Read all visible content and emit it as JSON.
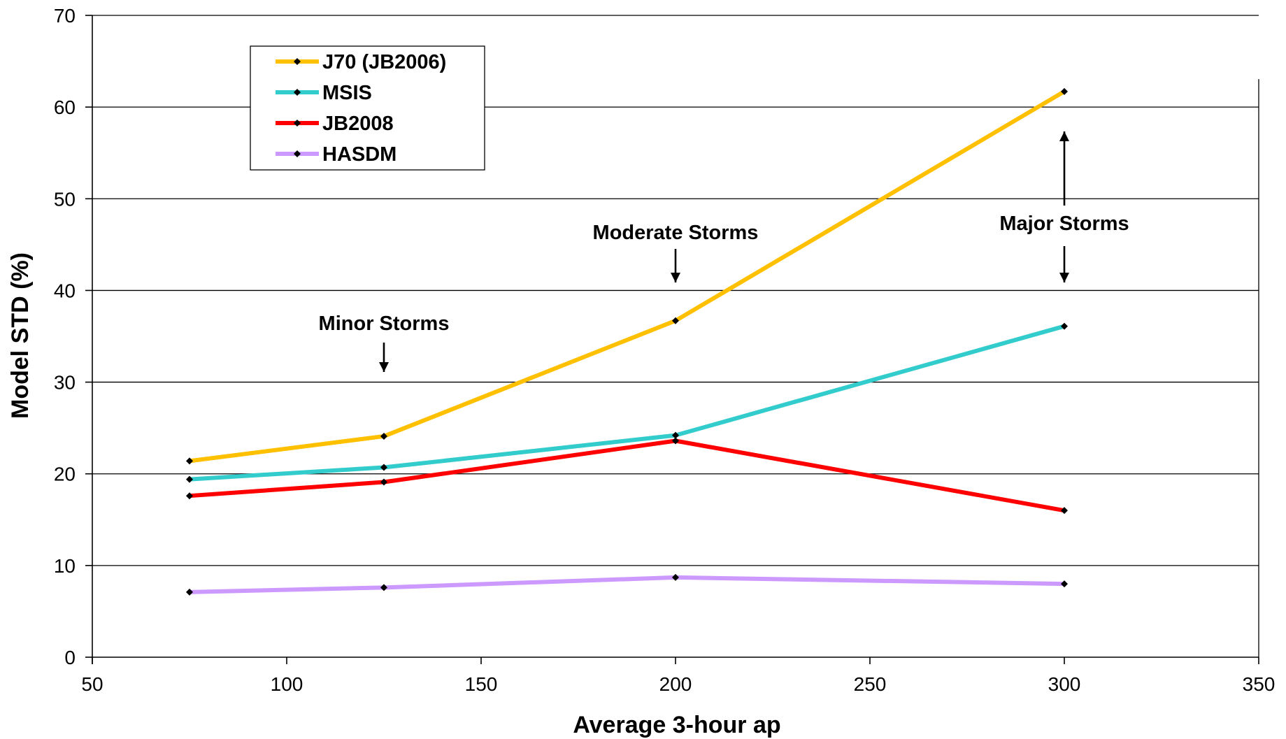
{
  "chart_data": {
    "type": "line",
    "title": "",
    "xlabel": "Average 3-hour ap",
    "ylabel": "Model STD (%)",
    "xlim": [
      50,
      350
    ],
    "ylim": [
      0,
      70
    ],
    "x_ticks": [
      50,
      100,
      150,
      200,
      250,
      300,
      350
    ],
    "y_ticks": [
      0,
      10,
      20,
      30,
      40,
      50,
      60,
      70
    ],
    "grid": "horizontal",
    "legend_position": "top-left",
    "x": [
      75,
      125,
      200,
      300
    ],
    "series": [
      {
        "name": "J70 (JB2006)",
        "color": "#FFC000",
        "values": [
          21.4,
          24.1,
          36.7,
          61.7
        ]
      },
      {
        "name": "MSIS",
        "color": "#33CCCC",
        "values": [
          19.4,
          20.7,
          24.2,
          36.1
        ]
      },
      {
        "name": "JB2008",
        "color": "#FF0000",
        "values": [
          17.6,
          19.1,
          23.6,
          16.0
        ]
      },
      {
        "name": "HASDM",
        "color": "#CC99FF",
        "values": [
          7.1,
          7.6,
          8.7,
          8.0
        ]
      }
    ],
    "annotations": [
      {
        "text": "Minor Storms",
        "x": 125,
        "arrow": "down"
      },
      {
        "text": "Moderate Storms",
        "x": 200,
        "arrow": "down"
      },
      {
        "text": "Major Storms",
        "x": 300,
        "arrow": "up-and-down"
      }
    ]
  }
}
